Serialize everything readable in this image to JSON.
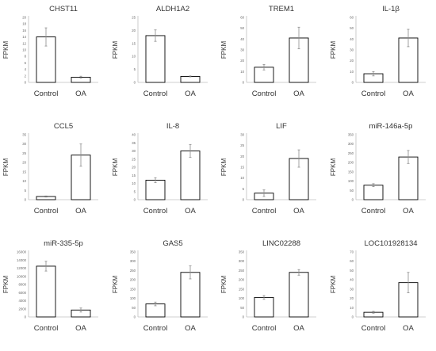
{
  "chart_data": [
    {
      "type": "bar",
      "title": "CHST11",
      "ylabel": "FPKM",
      "categories": [
        "Control",
        "OA"
      ],
      "values": [
        14,
        1.6
      ],
      "errors": [
        2.8,
        0.3
      ],
      "ylim": [
        0,
        20
      ],
      "yticks": [
        0,
        2,
        4,
        6,
        8,
        10,
        12,
        14,
        16,
        18,
        20
      ]
    },
    {
      "type": "bar",
      "title": "ALDH1A2",
      "ylabel": "FPKM",
      "categories": [
        "Control",
        "OA"
      ],
      "values": [
        18,
        2.3
      ],
      "errors": [
        2.2,
        0.2
      ],
      "ylim": [
        0,
        25
      ],
      "yticks": [
        0,
        5,
        10,
        15,
        20,
        25
      ]
    },
    {
      "type": "bar",
      "title": "TREM1",
      "ylabel": "FPKM",
      "categories": [
        "Control",
        "OA"
      ],
      "values": [
        14,
        41
      ],
      "errors": [
        2.5,
        10
      ],
      "ylim": [
        0,
        60
      ],
      "yticks": [
        0,
        10,
        20,
        30,
        40,
        50,
        60
      ]
    },
    {
      "type": "bar",
      "title": "IL-1β",
      "ylabel": "FPKM",
      "categories": [
        "Control",
        "OA"
      ],
      "values": [
        8,
        41
      ],
      "errors": [
        2,
        8
      ],
      "ylim": [
        0,
        60
      ],
      "yticks": [
        0,
        10,
        20,
        30,
        40,
        50,
        60
      ]
    },
    {
      "type": "bar",
      "title": "CCL5",
      "ylabel": "FPKM",
      "categories": [
        "Control",
        "OA"
      ],
      "values": [
        1.7,
        24
      ],
      "errors": [
        0.3,
        6
      ],
      "ylim": [
        0,
        35
      ],
      "yticks": [
        0,
        5,
        10,
        15,
        20,
        25,
        30,
        35
      ]
    },
    {
      "type": "bar",
      "title": "IL-8",
      "ylabel": "FPKM",
      "categories": [
        "Control",
        "OA"
      ],
      "values": [
        12,
        30
      ],
      "errors": [
        1.5,
        4
      ],
      "ylim": [
        0,
        40
      ],
      "yticks": [
        0,
        5,
        10,
        15,
        20,
        25,
        30,
        35,
        40
      ]
    },
    {
      "type": "bar",
      "title": "LIF",
      "ylabel": "FPKM",
      "categories": [
        "Control",
        "OA"
      ],
      "values": [
        3,
        19
      ],
      "errors": [
        1.5,
        4
      ],
      "ylim": [
        0,
        30
      ],
      "yticks": [
        0,
        5,
        10,
        15,
        20,
        25,
        30
      ]
    },
    {
      "type": "bar",
      "title": "miR-146a-5p",
      "ylabel": "FPKM",
      "categories": [
        "Control",
        "OA"
      ],
      "values": [
        78,
        230
      ],
      "errors": [
        8,
        35
      ],
      "ylim": [
        0,
        350
      ],
      "yticks": [
        0,
        50,
        100,
        150,
        200,
        250,
        300,
        350
      ]
    },
    {
      "type": "bar",
      "title": "miR-335-5p",
      "ylabel": "FPKM",
      "categories": [
        "Control",
        "OA"
      ],
      "values": [
        12500,
        1700
      ],
      "errors": [
        1200,
        500
      ],
      "ylim": [
        0,
        16000
      ],
      "yticks": [
        0,
        2000,
        4000,
        6000,
        8000,
        10000,
        12000,
        14000,
        16000
      ]
    },
    {
      "type": "bar",
      "title": "GAS5",
      "ylabel": "FPKM",
      "categories": [
        "Control",
        "OA"
      ],
      "values": [
        70,
        240
      ],
      "errors": [
        10,
        35
      ],
      "ylim": [
        0,
        350
      ],
      "yticks": [
        0,
        50,
        100,
        150,
        200,
        250,
        300,
        350
      ]
    },
    {
      "type": "bar",
      "title": "LINC02288",
      "ylabel": "FPKM",
      "categories": [
        "Control",
        "OA"
      ],
      "values": [
        105,
        240
      ],
      "errors": [
        10,
        15
      ],
      "ylim": [
        0,
        350
      ],
      "yticks": [
        0,
        50,
        100,
        150,
        200,
        250,
        300,
        350
      ]
    },
    {
      "type": "bar",
      "title": "LOC101928134",
      "ylabel": "FPKM",
      "categories": [
        "Control",
        "OA"
      ],
      "values": [
        5,
        37
      ],
      "errors": [
        1,
        11
      ],
      "ylim": [
        0,
        70
      ],
      "yticks": [
        0,
        10,
        20,
        30,
        40,
        50,
        60,
        70
      ]
    }
  ]
}
